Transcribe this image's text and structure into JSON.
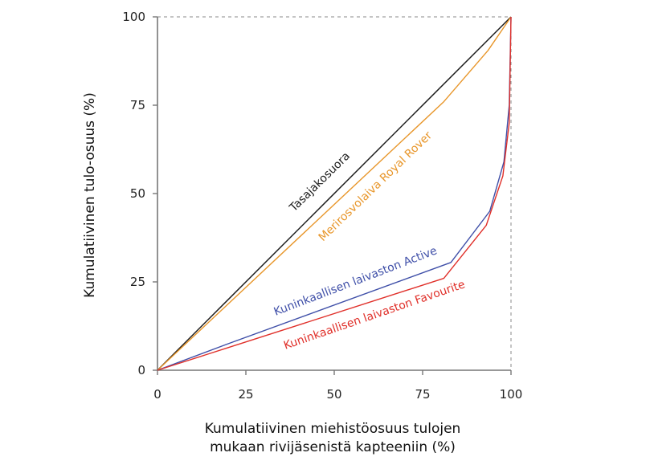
{
  "chart_data": {
    "type": "line",
    "title": "",
    "xlabel": "Kumulatiivinen miehistöosuus tulojen mukaan rivijäsenistä kapteeniin (%)",
    "xlabel_lines": [
      "Kumulatiivinen miehistöosuus tulojen",
      "mukaan rivijäsenistä kapteeniin (%)"
    ],
    "ylabel": "Kumulatiivinen tulo-osuus (%)",
    "xlim": [
      0,
      100
    ],
    "ylim": [
      0,
      100
    ],
    "xticks": [
      "0",
      "25",
      "50",
      "75",
      "100"
    ],
    "yticks": [
      "0",
      "25",
      "50",
      "75",
      "100"
    ],
    "grid": false,
    "legend": "inline labels",
    "series": [
      {
        "name": "Tasajakosuora",
        "color": "#1a1a1a",
        "x": [
          0,
          100
        ],
        "y": [
          0,
          100
        ]
      },
      {
        "name": "Merirosvolaiva Royal Rover",
        "color": "#e8962a",
        "x": [
          0,
          81,
          93.5,
          100
        ],
        "y": [
          0,
          76,
          90.5,
          100
        ]
      },
      {
        "name": "Kuninkaallisen laivaston Active",
        "color": "#3f4fa8",
        "x": [
          0,
          20,
          83,
          94,
          98,
          99.5,
          100
        ],
        "y": [
          0,
          7.5,
          30.5,
          45,
          59,
          75,
          100
        ]
      },
      {
        "name": "Kuninkaallisen laivaston Favourite",
        "color": "#e0302a",
        "x": [
          0,
          20,
          81,
          93,
          97.7,
          99.5,
          100
        ],
        "y": [
          0,
          6.4,
          26,
          41,
          55,
          70,
          100
        ]
      }
    ]
  }
}
